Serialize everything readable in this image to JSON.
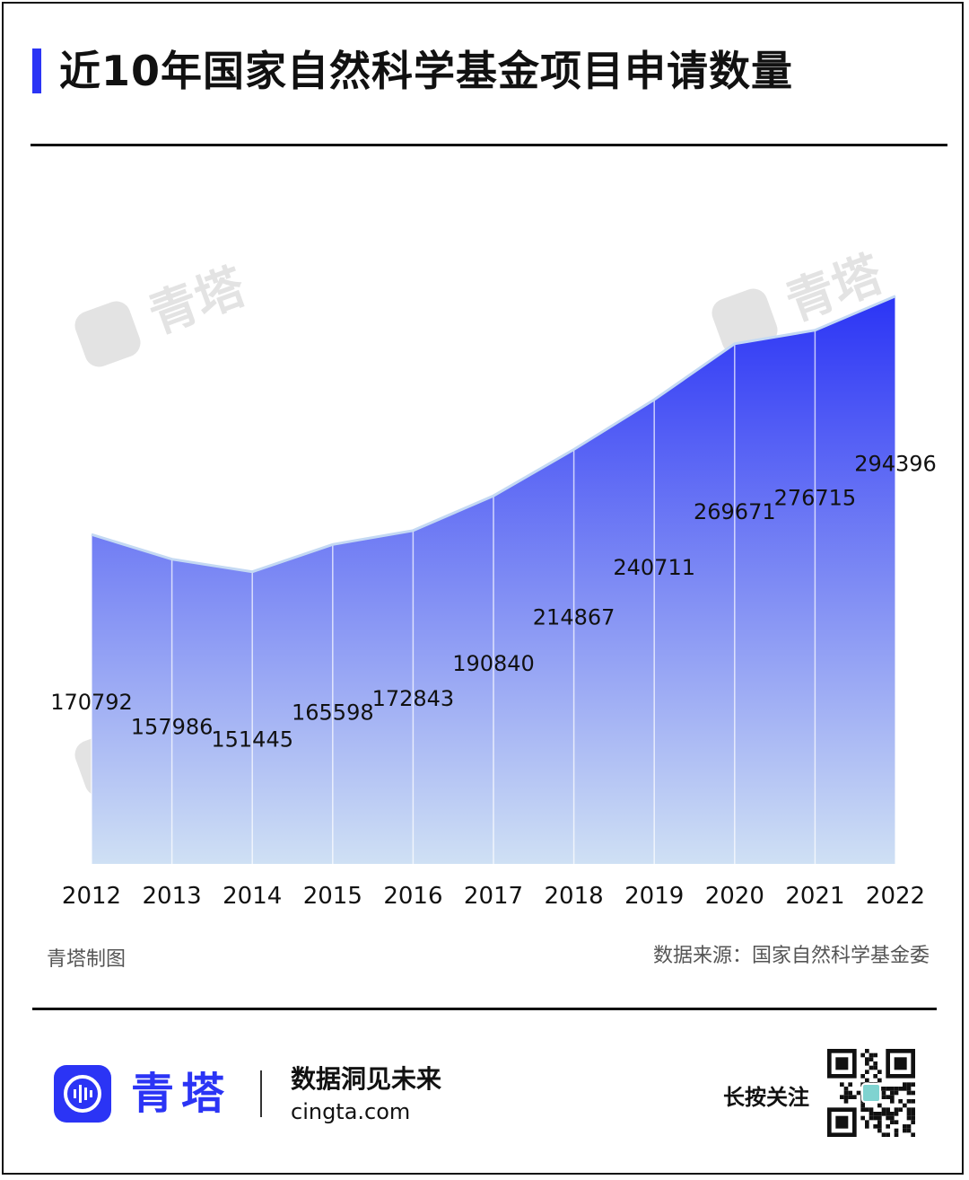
{
  "header": {
    "title": "近10年国家自然科学基金项目申请数量"
  },
  "colors": {
    "accent": "#2b34f5",
    "line": "#c4d9f3",
    "fill_top": "#2b34f5",
    "fill_bottom": "#cfe0f4",
    "watermark": "#e3e3e3"
  },
  "watermark": {
    "text": "青塔"
  },
  "chart_data": {
    "type": "area",
    "x": [
      "2012",
      "2013",
      "2014",
      "2015",
      "2016",
      "2017",
      "2018",
      "2019",
      "2020",
      "2021",
      "2022"
    ],
    "values": [
      170792,
      157986,
      151445,
      165598,
      172843,
      190840,
      214867,
      240711,
      269671,
      276715,
      294396
    ],
    "data_labels": [
      "170792",
      "157986",
      "151445",
      "165598",
      "172843",
      "190840",
      "214867",
      "240711",
      "269671",
      "276715",
      "294396"
    ],
    "ylim": [
      0,
      300000
    ],
    "grid": false,
    "legend": "none"
  },
  "footer_notes": {
    "made_by": "青塔制图",
    "source": "数据来源：国家自然科学基金委"
  },
  "brand": {
    "name": "青塔",
    "slogan": "数据洞见未来",
    "site": "cingta.com",
    "follow": "长按关注"
  }
}
